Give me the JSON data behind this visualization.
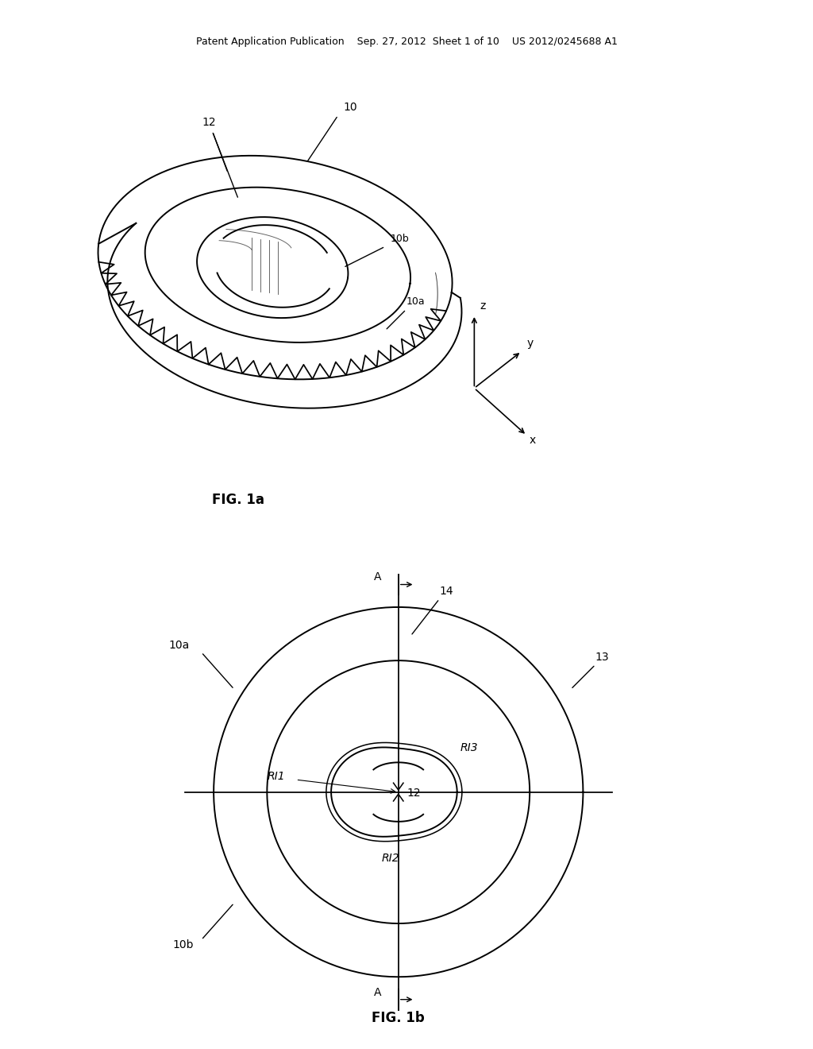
{
  "bg_color": "#ffffff",
  "header_text": "Patent Application Publication    Sep. 27, 2012  Sheet 1 of 10    US 2012/0245688 A1",
  "fig1a_caption": "FIG. 1a",
  "fig1b_caption": "FIG. 1b",
  "label_10": "10",
  "label_10a": "10a",
  "label_10b": "10b",
  "label_12_top": "12",
  "label_13": "13",
  "label_14": "14",
  "label_RI1": "RI1",
  "label_RI2": "RI2",
  "label_RI3": "RI3",
  "label_12_center": "12",
  "label_10a_bottom": "10a",
  "label_10b_bottom": "10b",
  "label_A_top": "A",
  "label_A_bottom": "A",
  "line_color": "#000000",
  "text_color": "#000000"
}
